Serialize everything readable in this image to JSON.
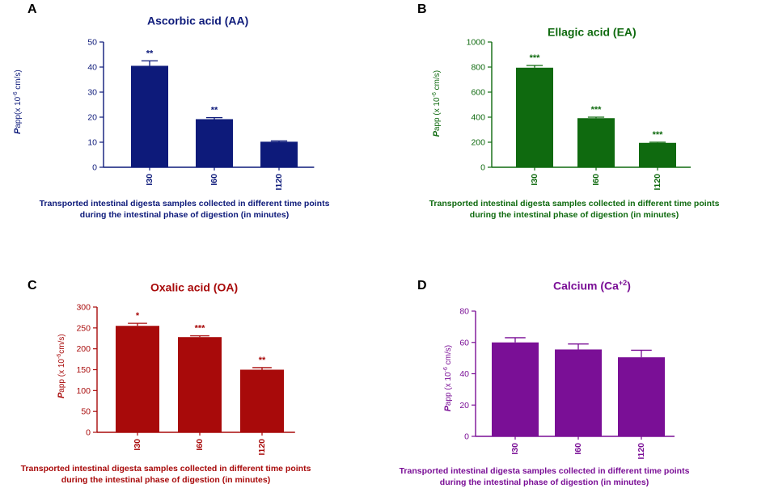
{
  "chart_data": [
    {
      "panel": "A",
      "type": "bar",
      "title": "Ascorbic acid  (AA)",
      "title_sup": "",
      "title_tail": "",
      "color": "#0d1a7a",
      "ylabel_main": "P",
      "ylabel_rest": "app(x 10",
      "ylabel_exp": "-6",
      "ylabel_unit": " cm/s)",
      "xlabel_line1": "Transported intestinal digesta samples collected in different time points",
      "xlabel_line2": "during the intestinal phase of digestion (in minutes)",
      "categories": [
        "I30",
        "I60",
        "I120"
      ],
      "values": [
        40.5,
        19.2,
        10.2
      ],
      "errors": [
        2.0,
        0.6,
        0.3
      ],
      "significance": [
        "**",
        "**",
        ""
      ],
      "ylim": [
        0,
        50
      ],
      "yticks": [
        0,
        10,
        20,
        30,
        40,
        50
      ]
    },
    {
      "panel": "B",
      "type": "bar",
      "title": "Ellagic acid (EA)",
      "title_sup": "",
      "title_tail": "",
      "color": "#0f6a0f",
      "ylabel_main": "P",
      "ylabel_rest": "app (x 10",
      "ylabel_exp": "-6",
      "ylabel_unit": " cm/s)",
      "xlabel_line1": "Transported intestinal digesta samples collected in different time points",
      "xlabel_line2": "during the intestinal phase of digestion (in minutes)",
      "categories": [
        "I30",
        "I60",
        "I120"
      ],
      "values": [
        795,
        392,
        195
      ],
      "errors": [
        18,
        8,
        5
      ],
      "significance": [
        "***",
        "***",
        "***"
      ],
      "ylim": [
        0,
        1000
      ],
      "yticks": [
        0,
        200,
        400,
        600,
        800,
        1000
      ]
    },
    {
      "panel": "C",
      "type": "bar",
      "title": "Oxalic acid (OA)",
      "title_sup": "",
      "title_tail": "",
      "color": "#a80a0a",
      "ylabel_main": "P",
      "ylabel_rest": "app (x 10",
      "ylabel_exp": "-6",
      "ylabel_unit": "cm/s)",
      "xlabel_line1": "Transported intestinal digesta samples collected in different time points",
      "xlabel_line2": "during the intestinal phase of digestion (in minutes)",
      "categories": [
        "I30",
        "I60",
        "I120"
      ],
      "values": [
        255,
        228,
        150
      ],
      "errors": [
        6,
        3,
        5
      ],
      "significance": [
        "*",
        "***",
        "**"
      ],
      "ylim": [
        0,
        300
      ],
      "yticks": [
        0,
        50,
        100,
        150,
        200,
        250,
        300
      ]
    },
    {
      "panel": "D",
      "type": "bar",
      "title": "Calcium (Ca",
      "title_sup": "+2",
      "title_tail": ")",
      "color": "#7a0f96",
      "ylabel_main": "P",
      "ylabel_rest": "app (x 10",
      "ylabel_exp": "-6",
      "ylabel_unit": " cm/s)",
      "xlabel_line1": "Transported intestinal digesta samples collected in different time points",
      "xlabel_line2": "during the intestinal phase of digestion (in minutes)",
      "categories": [
        "I30",
        "I60",
        "I120"
      ],
      "values": [
        60,
        55.5,
        50.5
      ],
      "errors": [
        3,
        3.5,
        4.5
      ],
      "significance": [
        "",
        "",
        ""
      ],
      "ylim": [
        0,
        80
      ],
      "yticks": [
        0,
        20,
        40,
        60,
        80
      ]
    }
  ]
}
